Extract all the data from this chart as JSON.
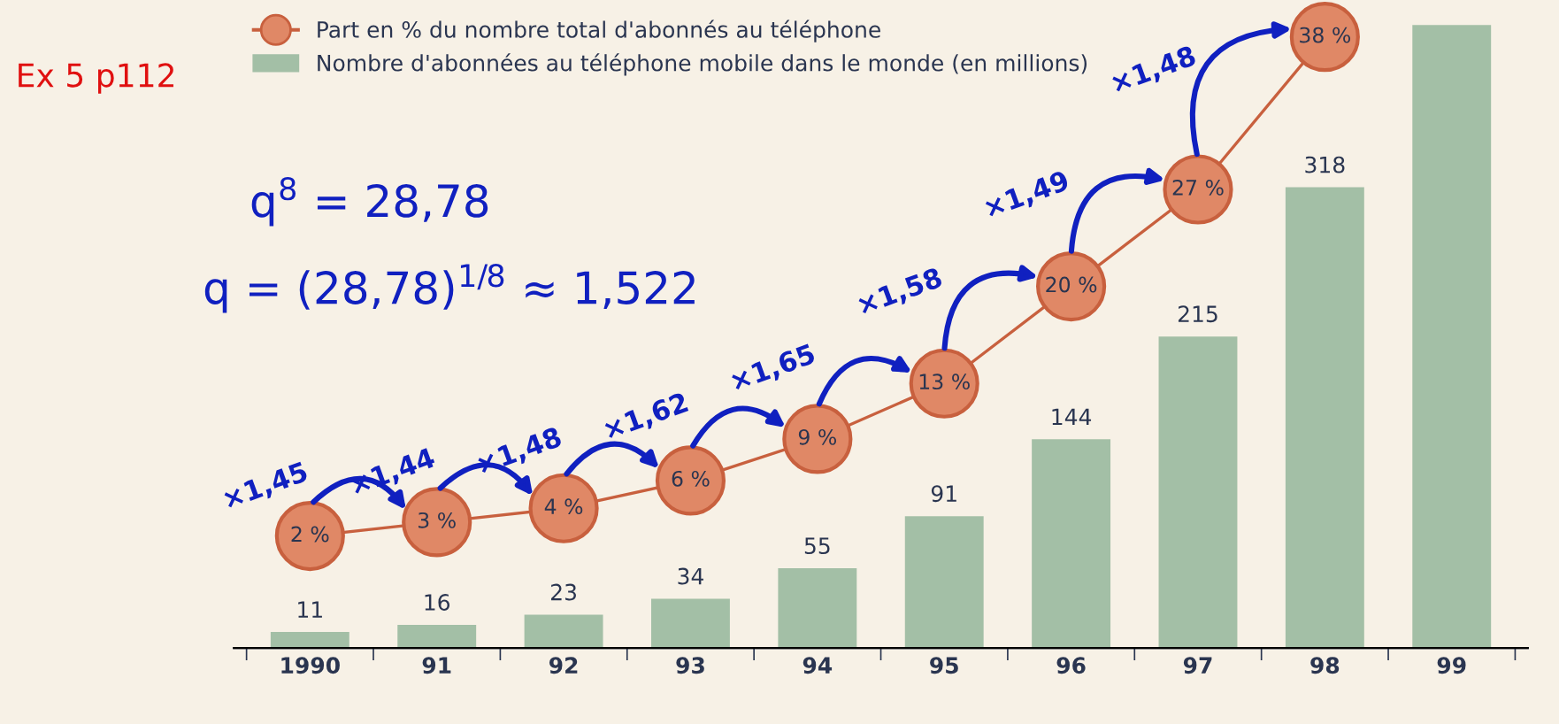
{
  "chart_data": {
    "type": "bar",
    "categories": [
      "1990",
      "91",
      "92",
      "93",
      "94",
      "95",
      "96",
      "97",
      "98",
      "99"
    ],
    "series": [
      {
        "name": "Nombre d'abonnées au téléphone mobile dans le monde (en millions)",
        "color": "#a3bfa6",
        "values": [
          11,
          16,
          23,
          34,
          55,
          91,
          144,
          215,
          318,
          430
        ],
        "value_labels": [
          "11",
          "16",
          "23",
          "34",
          "55",
          "91",
          "144",
          "215",
          "318",
          null
        ]
      },
      {
        "name": "Part en % du nombre total d'abonnés au téléphone",
        "type": "line",
        "axis": "y2",
        "color": "#c8603e",
        "marker": "circle",
        "values": [
          2,
          3,
          4,
          6,
          9,
          13,
          20,
          27,
          38,
          null
        ],
        "value_labels": [
          "2 %",
          "3 %",
          "4 %",
          "6 %",
          "9 %",
          "13 %",
          "20 %",
          "27 %",
          "38 %",
          null
        ]
      }
    ],
    "legend": "top",
    "grid": false,
    "annotations": [
      "Ex 5 p112",
      "q$^{8}$ = 28,78",
      "q = (28,78)$^{1/8}$ ≈ 1,522",
      "×1,45",
      "×1,44",
      "×1,48",
      "×1,62",
      "×1,65",
      "×1,58",
      "×1,49",
      "×1,48"
    ]
  }
}
